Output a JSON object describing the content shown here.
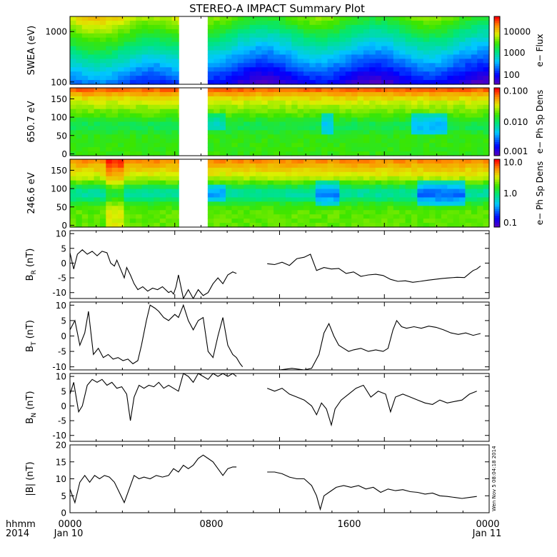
{
  "figure": {
    "title": "STEREO-A IMPACT Summary Plot",
    "corner_labels": [
      "hhmm",
      "2014"
    ],
    "x_ticks": [
      "0000",
      "0800",
      "1600",
      "0000"
    ],
    "x_dates": [
      "Jan 10",
      "Jan 11"
    ],
    "side_stamp": "Wen Nov 5 08:04:18 2014"
  },
  "chart_data": [
    {
      "type": "heatmap",
      "id": "swea",
      "ylabel": "SWEA (eV)",
      "yscale": "log",
      "ylim": [
        90,
        2000
      ],
      "yticks": [
        "100",
        "1000"
      ],
      "colorbar_label": "e− Flux",
      "colorbar_ticks": [
        "10000",
        "1000",
        "100"
      ],
      "data_gap_hours": [
        8.85,
        11.1
      ]
    },
    {
      "type": "heatmap",
      "id": "pad650",
      "ylabel": "650.7 eV",
      "ylim": [
        -5,
        180
      ],
      "yticks": [
        "150",
        "100",
        "50",
        "0"
      ],
      "colorbar_label": "e− Ph Sp Dens",
      "colorbar_ticks": [
        "0.100",
        "0.010",
        "0.001"
      ],
      "data_gap_hours": [
        8.85,
        11.1
      ]
    },
    {
      "type": "heatmap",
      "id": "pad246",
      "ylabel": "246.6 eV",
      "ylim": [
        -5,
        180
      ],
      "yticks": [
        "150",
        "100",
        "50",
        "0"
      ],
      "colorbar_label": "e− Ph Sp Dens",
      "colorbar_ticks": [
        "10.0",
        "1.0",
        "0.1"
      ],
      "data_gap_hours": [
        8.85,
        11.1
      ]
    },
    {
      "type": "line",
      "id": "br",
      "ylabel": "B",
      "ylabel_sub": "R",
      "ylabel_unit": " (nT)",
      "ylim": [
        -12,
        11
      ],
      "yticks": [
        "10",
        "5",
        "0",
        "-5",
        "-10"
      ],
      "segments": [
        [
          [
            0,
            3.5
          ],
          [
            0.3,
            -2
          ],
          [
            0.6,
            3
          ],
          [
            1,
            4.5
          ],
          [
            1.4,
            3
          ],
          [
            1.8,
            4
          ],
          [
            2.2,
            2.5
          ],
          [
            2.6,
            4
          ],
          [
            3,
            3.5
          ],
          [
            3.3,
            0
          ],
          [
            3.6,
            -1
          ],
          [
            3.8,
            1
          ],
          [
            4.1,
            -2
          ],
          [
            4.4,
            -5
          ],
          [
            4.6,
            -1.5
          ],
          [
            4.9,
            -4
          ],
          [
            5.2,
            -7
          ],
          [
            5.5,
            -9
          ],
          [
            5.9,
            -8
          ],
          [
            6.3,
            -9.5
          ],
          [
            6.7,
            -8.5
          ],
          [
            7.1,
            -9
          ],
          [
            7.5,
            -8
          ],
          [
            8,
            -10
          ],
          [
            8.2,
            -9.5
          ],
          [
            8.4,
            -10.5
          ],
          [
            8.6,
            -8
          ],
          [
            8.8,
            -4
          ],
          [
            9.2,
            -12
          ],
          [
            9.6,
            -9
          ],
          [
            10,
            -12
          ],
          [
            10.4,
            -9
          ],
          [
            10.8,
            -11
          ],
          [
            11.2,
            -10
          ],
          [
            11.6,
            -7
          ],
          [
            12,
            -5
          ],
          [
            12.4,
            -7
          ],
          [
            12.8,
            -4
          ],
          [
            13.2,
            -3
          ],
          [
            13.5,
            -3.5
          ]
        ],
        [
          [
            16,
            -0.2
          ],
          [
            16.6,
            -0.5
          ],
          [
            17.2,
            0.3
          ],
          [
            17.8,
            -0.8
          ],
          [
            18.4,
            1.5
          ],
          [
            19,
            2
          ],
          [
            19.5,
            3
          ],
          [
            20,
            -2.5
          ],
          [
            20.6,
            -1.5
          ],
          [
            21.2,
            -2
          ],
          [
            21.8,
            -1.8
          ],
          [
            22.4,
            -3.5
          ],
          [
            23,
            -3
          ],
          [
            23.6,
            -4.5
          ],
          [
            24.2,
            -4
          ],
          [
            24.8,
            -3.8
          ],
          [
            25.4,
            -4.2
          ],
          [
            26,
            -5.5
          ],
          [
            26.6,
            -6.2
          ],
          [
            27.2,
            -6
          ],
          [
            27.8,
            -6.5
          ],
          [
            28.4,
            -6.2
          ],
          [
            29,
            -5.8
          ],
          [
            29.6,
            -5.5
          ],
          [
            30.2,
            -5.2
          ],
          [
            30.8,
            -5
          ],
          [
            31.4,
            -4.8
          ],
          [
            32,
            -4.9
          ],
          [
            32.4,
            -3.5
          ],
          [
            32.7,
            -2.5
          ],
          [
            33,
            -2
          ],
          [
            33.3,
            -1
          ]
        ]
      ]
    },
    {
      "type": "line",
      "id": "bt",
      "ylabel": "B",
      "ylabel_sub": "T",
      "ylabel_unit": " (nT)",
      "ylim": [
        -11,
        11
      ],
      "yticks": [
        "10",
        "5",
        "0",
        "-5",
        "-10"
      ],
      "segments": [
        [
          [
            0,
            2
          ],
          [
            0.4,
            5
          ],
          [
            0.8,
            -3
          ],
          [
            1.2,
            1
          ],
          [
            1.5,
            8
          ],
          [
            1.9,
            -6
          ],
          [
            2.3,
            -4
          ],
          [
            2.7,
            -7
          ],
          [
            3.1,
            -6
          ],
          [
            3.5,
            -7.5
          ],
          [
            3.9,
            -7
          ],
          [
            4.3,
            -8
          ],
          [
            4.7,
            -7.5
          ],
          [
            5.1,
            -9
          ],
          [
            5.5,
            -8
          ],
          [
            5.8,
            -3
          ],
          [
            6.2,
            5
          ],
          [
            6.5,
            10
          ],
          [
            6.9,
            9
          ],
          [
            7.2,
            8
          ],
          [
            7.6,
            6
          ],
          [
            8,
            5
          ],
          [
            8.5,
            7
          ],
          [
            8.8,
            6
          ],
          [
            9.2,
            10
          ],
          [
            9.6,
            5
          ],
          [
            10,
            2
          ],
          [
            10.4,
            5
          ],
          [
            10.8,
            6
          ],
          [
            11.2,
            -5
          ],
          [
            11.6,
            -7
          ],
          [
            12,
            0
          ],
          [
            12.4,
            6
          ],
          [
            12.8,
            -3
          ],
          [
            13.2,
            -6
          ],
          [
            13.5,
            -7
          ],
          [
            13.8,
            -9
          ],
          [
            14,
            -10
          ]
        ],
        [
          [
            16,
            -11
          ],
          [
            17,
            -11
          ],
          [
            18,
            -10.5
          ],
          [
            19,
            -11
          ],
          [
            19.6,
            -10.5
          ],
          [
            20.2,
            -6
          ],
          [
            20.6,
            1
          ],
          [
            21,
            4
          ],
          [
            21.4,
            0
          ],
          [
            21.8,
            -3
          ],
          [
            22.2,
            -4
          ],
          [
            22.6,
            -5
          ],
          [
            23,
            -4.5
          ],
          [
            23.6,
            -4
          ],
          [
            24.2,
            -5
          ],
          [
            24.8,
            -4.5
          ],
          [
            25.4,
            -5
          ],
          [
            25.8,
            -4
          ],
          [
            26.2,
            2
          ],
          [
            26.5,
            5
          ],
          [
            26.9,
            3
          ],
          [
            27.3,
            2.5
          ],
          [
            27.9,
            3
          ],
          [
            28.5,
            2.5
          ],
          [
            29.1,
            3.2
          ],
          [
            29.7,
            2.8
          ],
          [
            30.3,
            2
          ],
          [
            30.9,
            1
          ],
          [
            31.5,
            0.5
          ],
          [
            32.1,
            1
          ],
          [
            32.7,
            0.2
          ],
          [
            33.3,
            0.8
          ]
        ]
      ]
    },
    {
      "type": "line",
      "id": "bn",
      "ylabel": "B",
      "ylabel_sub": "N",
      "ylabel_unit": " (nT)",
      "ylim": [
        -12,
        11
      ],
      "yticks": [
        "10",
        "5",
        "0",
        "-5",
        "-10"
      ],
      "segments": [
        [
          [
            0,
            4
          ],
          [
            0.3,
            8
          ],
          [
            0.7,
            -2
          ],
          [
            1,
            0
          ],
          [
            1.4,
            7
          ],
          [
            1.8,
            9
          ],
          [
            2.2,
            8
          ],
          [
            2.6,
            9
          ],
          [
            3,
            7
          ],
          [
            3.4,
            8
          ],
          [
            3.8,
            6
          ],
          [
            4.2,
            6.5
          ],
          [
            4.6,
            4
          ],
          [
            4.9,
            -5
          ],
          [
            5.2,
            3
          ],
          [
            5.6,
            7
          ],
          [
            6,
            6
          ],
          [
            6.4,
            7
          ],
          [
            6.8,
            6.5
          ],
          [
            7.2,
            8
          ],
          [
            7.6,
            6
          ],
          [
            8,
            7
          ],
          [
            8.4,
            6
          ],
          [
            8.8,
            5
          ],
          [
            9.2,
            11
          ],
          [
            9.6,
            10
          ],
          [
            10,
            8
          ],
          [
            10.4,
            11
          ],
          [
            10.8,
            10
          ],
          [
            11.2,
            9
          ],
          [
            11.6,
            11
          ],
          [
            12,
            10
          ],
          [
            12.4,
            11
          ],
          [
            12.8,
            10
          ],
          [
            13.2,
            11
          ],
          [
            13.5,
            10
          ]
        ],
        [
          [
            16,
            6
          ],
          [
            16.6,
            5
          ],
          [
            17.2,
            6
          ],
          [
            17.8,
            4
          ],
          [
            18.4,
            3
          ],
          [
            19,
            2
          ],
          [
            19.6,
            0
          ],
          [
            20,
            -3
          ],
          [
            20.4,
            1
          ],
          [
            20.8,
            -1
          ],
          [
            21.2,
            -6.5
          ],
          [
            21.5,
            -1
          ],
          [
            22,
            2
          ],
          [
            22.6,
            4
          ],
          [
            23.2,
            6
          ],
          [
            23.8,
            7
          ],
          [
            24.4,
            3
          ],
          [
            25,
            5
          ],
          [
            25.6,
            4
          ],
          [
            26,
            -2
          ],
          [
            26.4,
            3
          ],
          [
            27,
            4
          ],
          [
            27.6,
            3
          ],
          [
            28.2,
            2
          ],
          [
            28.8,
            1
          ],
          [
            29.4,
            0.5
          ],
          [
            30,
            2
          ],
          [
            30.6,
            1
          ],
          [
            31.2,
            1.5
          ],
          [
            31.8,
            2
          ],
          [
            32.4,
            4
          ],
          [
            33,
            5
          ]
        ]
      ]
    },
    {
      "type": "line",
      "id": "bmag",
      "ylabel": "|B| (nT)",
      "ylim": [
        0,
        20
      ],
      "yticks": [
        "20",
        "15",
        "10",
        "5",
        "0"
      ],
      "segments": [
        [
          [
            0,
            7
          ],
          [
            0.4,
            3
          ],
          [
            0.8,
            9
          ],
          [
            1.2,
            11
          ],
          [
            1.6,
            9
          ],
          [
            2,
            11
          ],
          [
            2.4,
            10
          ],
          [
            2.8,
            11
          ],
          [
            3.2,
            10.5
          ],
          [
            3.6,
            9
          ],
          [
            4,
            6
          ],
          [
            4.4,
            3
          ],
          [
            4.8,
            7
          ],
          [
            5.2,
            11
          ],
          [
            5.6,
            10
          ],
          [
            6,
            10.5
          ],
          [
            6.5,
            10
          ],
          [
            7,
            11
          ],
          [
            7.5,
            10.5
          ],
          [
            8,
            11
          ],
          [
            8.4,
            13
          ],
          [
            8.8,
            12
          ],
          [
            9.2,
            14
          ],
          [
            9.6,
            13
          ],
          [
            10,
            14
          ],
          [
            10.4,
            16
          ],
          [
            10.8,
            17
          ],
          [
            11.2,
            16
          ],
          [
            11.6,
            15
          ],
          [
            12,
            13
          ],
          [
            12.4,
            11
          ],
          [
            12.8,
            13
          ],
          [
            13.2,
            13.5
          ],
          [
            13.5,
            13.5
          ]
        ],
        [
          [
            16,
            12
          ],
          [
            16.6,
            12
          ],
          [
            17.2,
            11.5
          ],
          [
            17.8,
            10.5
          ],
          [
            18.4,
            10
          ],
          [
            19,
            10
          ],
          [
            19.6,
            8
          ],
          [
            20,
            5
          ],
          [
            20.3,
            1
          ],
          [
            20.6,
            5
          ],
          [
            21,
            6
          ],
          [
            21.6,
            7.5
          ],
          [
            22.2,
            8
          ],
          [
            22.8,
            7.5
          ],
          [
            23.4,
            8
          ],
          [
            24,
            7
          ],
          [
            24.6,
            7.5
          ],
          [
            25.2,
            6
          ],
          [
            25.8,
            7
          ],
          [
            26.4,
            6.5
          ],
          [
            27,
            6.8
          ],
          [
            27.6,
            6.2
          ],
          [
            28.2,
            6
          ],
          [
            28.8,
            5.5
          ],
          [
            29.4,
            5.8
          ],
          [
            30,
            5
          ],
          [
            30.6,
            4.8
          ],
          [
            31.2,
            4.5
          ],
          [
            31.8,
            4.2
          ],
          [
            32.4,
            4.5
          ],
          [
            33,
            4.8
          ]
        ]
      ]
    }
  ]
}
